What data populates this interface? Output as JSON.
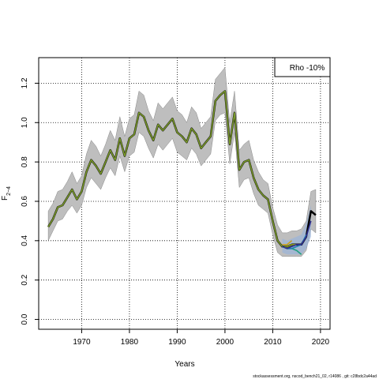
{
  "chart_data": {
    "type": "line",
    "xlabel": "Years",
    "ylabel_main": "F",
    "ylabel_sub": "2−4",
    "legend_label": "Rho -10%",
    "legend_position": "top-right",
    "footnote": "stockassessment.org, nscod_bench21_02, r14086 , git: c28bdc2a44ad",
    "xlim": [
      1961,
      2022
    ],
    "ylim": [
      -0.05,
      1.33
    ],
    "xticks": [
      1970,
      1980,
      1990,
      2000,
      2010,
      2020
    ],
    "yticks": [
      0.0,
      0.2,
      0.4,
      0.6,
      0.8,
      1.0,
      1.2
    ],
    "grid": true,
    "band_color": "#bebebe",
    "base_line_color": "#000000",
    "x": [
      1963,
      1964,
      1965,
      1966,
      1967,
      1968,
      1969,
      1970,
      1971,
      1972,
      1973,
      1974,
      1975,
      1976,
      1977,
      1978,
      1979,
      1980,
      1981,
      1982,
      1983,
      1984,
      1985,
      1986,
      1987,
      1988,
      1989,
      1990,
      1991,
      1992,
      1993,
      1994,
      1995,
      1996,
      1997,
      1998,
      1999,
      2000,
      2001,
      2002,
      2003,
      2004,
      2005,
      2006,
      2007,
      2008,
      2009,
      2010,
      2011,
      2012,
      2013,
      2014,
      2015,
      2016,
      2017,
      2018,
      2019
    ],
    "estimate": [
      0.47,
      0.51,
      0.57,
      0.58,
      0.62,
      0.66,
      0.61,
      0.65,
      0.75,
      0.81,
      0.78,
      0.74,
      0.8,
      0.86,
      0.81,
      0.92,
      0.83,
      0.92,
      0.94,
      1.05,
      1.03,
      0.96,
      0.91,
      0.99,
      0.96,
      0.99,
      1.02,
      0.95,
      0.93,
      0.9,
      0.97,
      0.94,
      0.87,
      0.9,
      0.93,
      1.11,
      1.14,
      1.16,
      0.89,
      1.05,
      0.76,
      0.8,
      0.81,
      0.72,
      0.66,
      0.63,
      0.61,
      0.5,
      0.4,
      0.37,
      0.37,
      0.38,
      0.38,
      0.38,
      0.42,
      0.55,
      0.53
    ],
    "lower": [
      0.4,
      0.45,
      0.5,
      0.51,
      0.55,
      0.58,
      0.54,
      0.58,
      0.67,
      0.72,
      0.69,
      0.66,
      0.72,
      0.77,
      0.73,
      0.83,
      0.75,
      0.83,
      0.85,
      0.95,
      0.93,
      0.87,
      0.82,
      0.89,
      0.86,
      0.89,
      0.92,
      0.85,
      0.83,
      0.81,
      0.87,
      0.84,
      0.78,
      0.81,
      0.84,
      1.01,
      1.04,
      1.05,
      0.79,
      0.95,
      0.67,
      0.71,
      0.72,
      0.64,
      0.58,
      0.56,
      0.54,
      0.43,
      0.34,
      0.32,
      0.32,
      0.32,
      0.32,
      0.32,
      0.35,
      0.46,
      0.44
    ],
    "upper": [
      0.55,
      0.59,
      0.65,
      0.66,
      0.7,
      0.75,
      0.69,
      0.73,
      0.84,
      0.91,
      0.88,
      0.83,
      0.89,
      0.96,
      0.91,
      1.03,
      0.93,
      1.02,
      1.04,
      1.16,
      1.14,
      1.06,
      1.01,
      1.1,
      1.07,
      1.1,
      1.13,
      1.06,
      1.04,
      1.0,
      1.08,
      1.05,
      0.97,
      1.0,
      1.03,
      1.22,
      1.25,
      1.28,
      1.0,
      1.16,
      0.86,
      0.89,
      0.91,
      0.81,
      0.75,
      0.71,
      0.69,
      0.57,
      0.48,
      0.44,
      0.44,
      0.45,
      0.45,
      0.46,
      0.5,
      0.65,
      0.66
    ],
    "peels": [
      {
        "color": "#c8a020",
        "x": [
          2012,
          2013,
          2014
        ],
        "values": [
          0.38,
          0.38,
          0.4
        ]
      },
      {
        "color": "#8a9a1a",
        "x": [
          2012,
          2013,
          2014,
          2015
        ],
        "values": [
          0.37,
          0.37,
          0.38,
          0.38
        ]
      },
      {
        "color": "#20a080",
        "x": [
          2012,
          2013,
          2014,
          2015,
          2016
        ],
        "values": [
          0.37,
          0.36,
          0.36,
          0.35,
          0.33
        ]
      },
      {
        "color": "#2080b0",
        "x": [
          2012,
          2013,
          2014,
          2015,
          2016,
          2017
        ],
        "values": [
          0.37,
          0.36,
          0.36,
          0.37,
          0.38,
          0.43
        ]
      },
      {
        "color": "#303090",
        "x": [
          2012,
          2013,
          2014,
          2015,
          2016,
          2017,
          2018
        ],
        "values": [
          0.37,
          0.36,
          0.37,
          0.38,
          0.38,
          0.42,
          0.5
        ]
      }
    ],
    "peel_band": {
      "color": "#9ab4d8",
      "x": [
        2012,
        2013,
        2014,
        2015,
        2016,
        2017,
        2018
      ],
      "lower": [
        0.34,
        0.33,
        0.33,
        0.33,
        0.33,
        0.36,
        0.42
      ],
      "upper": [
        0.41,
        0.4,
        0.41,
        0.42,
        0.43,
        0.49,
        0.58
      ]
    },
    "overlay_line_color": "#7a9a2a"
  }
}
